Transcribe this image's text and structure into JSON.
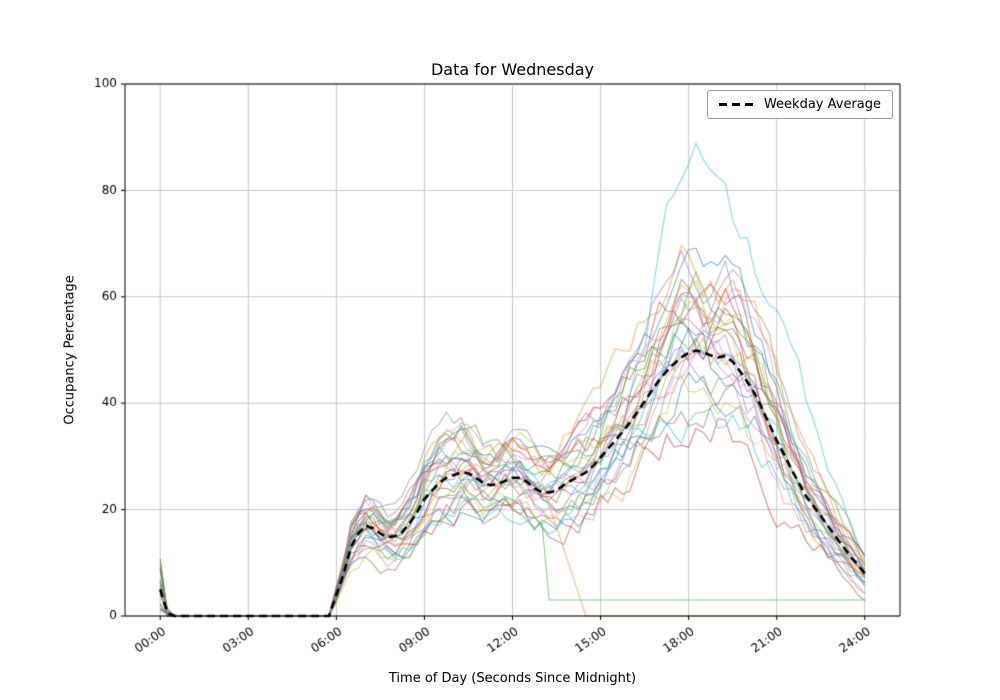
{
  "chart_data": {
    "type": "line",
    "title": "Data for Wednesday",
    "xlabel": "Time of Day (Seconds Since Midnight)",
    "ylabel": "Occupancy Percentage",
    "xlim_hours": [
      -1.2,
      25.2
    ],
    "ylim": [
      0,
      100
    ],
    "grid": true,
    "xtick_hours": [
      0,
      3,
      6,
      9,
      12,
      15,
      18,
      21,
      24
    ],
    "xtick_labels": [
      "00:00",
      "03:00",
      "06:00",
      "09:00",
      "12:00",
      "15:00",
      "18:00",
      "21:00",
      "24:00"
    ],
    "ytick_values": [
      0,
      20,
      40,
      60,
      80,
      100
    ],
    "legend": {
      "position": "upper right",
      "entries": [
        {
          "label": "Weekday Average",
          "style": "dashed",
          "color": "#000000"
        }
      ]
    },
    "average_series": {
      "name": "Weekday Average",
      "style": "dashed",
      "color": "#000000",
      "points": [
        [
          0,
          5
        ],
        [
          0.25,
          0.5
        ],
        [
          0.5,
          0
        ],
        [
          1,
          0
        ],
        [
          1.5,
          0
        ],
        [
          2,
          0
        ],
        [
          2.5,
          0
        ],
        [
          3,
          0
        ],
        [
          3.5,
          0
        ],
        [
          4,
          0
        ],
        [
          4.5,
          0
        ],
        [
          5,
          0
        ],
        [
          5.5,
          0
        ],
        [
          5.75,
          0
        ],
        [
          6,
          4
        ],
        [
          6.25,
          8
        ],
        [
          6.5,
          13
        ],
        [
          6.75,
          15.5
        ],
        [
          7,
          17
        ],
        [
          7.25,
          16.5
        ],
        [
          7.5,
          15.5
        ],
        [
          7.75,
          14.8
        ],
        [
          8,
          15
        ],
        [
          8.25,
          15.8
        ],
        [
          8.5,
          17.5
        ],
        [
          8.75,
          19.5
        ],
        [
          9,
          22
        ],
        [
          9.25,
          23.5
        ],
        [
          9.5,
          25
        ],
        [
          9.75,
          26
        ],
        [
          10,
          26.5
        ],
        [
          10.25,
          27
        ],
        [
          10.5,
          26.8
        ],
        [
          10.75,
          26
        ],
        [
          11,
          25
        ],
        [
          11.25,
          24.6
        ],
        [
          11.5,
          24.8
        ],
        [
          11.75,
          25.4
        ],
        [
          12,
          26
        ],
        [
          12.25,
          26
        ],
        [
          12.5,
          25.2
        ],
        [
          12.75,
          24
        ],
        [
          13,
          23.3
        ],
        [
          13.25,
          23.2
        ],
        [
          13.5,
          23.6
        ],
        [
          13.75,
          24.6
        ],
        [
          14,
          25.5
        ],
        [
          14.25,
          26.2
        ],
        [
          14.5,
          27
        ],
        [
          14.75,
          28.2
        ],
        [
          15,
          29.8
        ],
        [
          15.25,
          31.4
        ],
        [
          15.5,
          33
        ],
        [
          15.75,
          34.6
        ],
        [
          16,
          36.4
        ],
        [
          16.25,
          38.3
        ],
        [
          16.5,
          40.3
        ],
        [
          16.75,
          42.4
        ],
        [
          17,
          44.4
        ],
        [
          17.25,
          46
        ],
        [
          17.5,
          47.4
        ],
        [
          17.75,
          48.6
        ],
        [
          18,
          49.5
        ],
        [
          18.25,
          49.9
        ],
        [
          18.5,
          49.6
        ],
        [
          18.75,
          49
        ],
        [
          19,
          48.6
        ],
        [
          19.25,
          48.9
        ],
        [
          19.5,
          47.8
        ],
        [
          19.75,
          46
        ],
        [
          20,
          44
        ],
        [
          20.25,
          41.8
        ],
        [
          20.5,
          39
        ],
        [
          20.75,
          36
        ],
        [
          21,
          33
        ],
        [
          21.25,
          30.4
        ],
        [
          21.5,
          27.6
        ],
        [
          22,
          22.5
        ],
        [
          22.5,
          18.8
        ],
        [
          23,
          15
        ],
        [
          23.5,
          11.3
        ],
        [
          24,
          8
        ]
      ]
    },
    "ensemble": {
      "description": "individual Wednesday traces (unlabeled)",
      "count": 30,
      "seed": 7,
      "alpha": 0.55,
      "palette": [
        "#1f77b4",
        "#ff7f0e",
        "#2ca02c",
        "#d62728",
        "#9467bd",
        "#8c564b",
        "#e377c2",
        "#7f7f7f",
        "#bcbd22",
        "#17becf"
      ]
    },
    "axes_colors": {
      "grid": "#c7c7c7",
      "spine": "#000000",
      "tick_label": "#000000"
    }
  }
}
